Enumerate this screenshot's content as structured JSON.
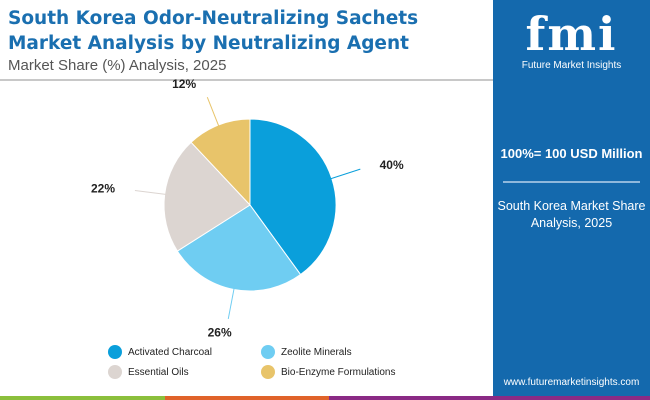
{
  "header": {
    "title_line1": "South Korea Odor-Neutralizing Sachets",
    "title_line2": "Market Analysis by Neutralizing Agent",
    "subtitle": "Market Share (%) Analysis, 2025"
  },
  "panel": {
    "logo_text": "fmi",
    "logo_name": "Future Market Insights",
    "total": "100%= 100 USD Million",
    "desc": "South Korea Market Share Analysis, 2025",
    "url": "www.futuremarketinsights.com"
  },
  "chart_data": {
    "type": "pie",
    "title": "",
    "categories": [
      "Activated Charcoal",
      "Zeolite Minerals",
      "Essential Oils",
      "Bio-Enzyme Formulations"
    ],
    "values": [
      40,
      26,
      22,
      12
    ],
    "labels": [
      "40%",
      "26%",
      "22%",
      "12%"
    ],
    "colors": [
      "#0a9fdb",
      "#6fcdf2",
      "#dcd5d1",
      "#e8c46a"
    ],
    "legend_placement": "bottom"
  },
  "colors": {
    "panel": "#1469ad",
    "title": "#1a6fb0",
    "bar": [
      "#8bbf3c",
      "#e0632a",
      "#8a2a85"
    ]
  }
}
